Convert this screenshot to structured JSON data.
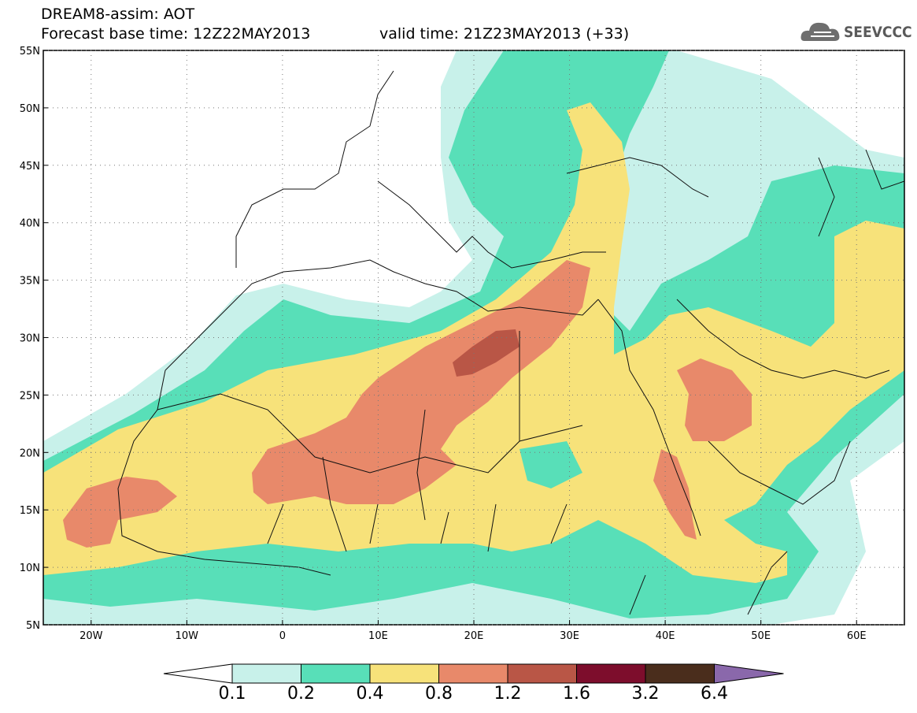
{
  "header": {
    "line1": "DREAM8-assim: AOT",
    "line2_left": "Forecast base time: 12Z22MAY2013",
    "line2_right": "valid time: 21Z23MAY2013 (+33)"
  },
  "logo": {
    "text": "SEEVCCC",
    "icon": "cloud-icon"
  },
  "map": {
    "lat_labels": [
      "55N",
      "50N",
      "45N",
      "40N",
      "35N",
      "30N",
      "25N",
      "20N",
      "15N",
      "10N",
      "5N"
    ],
    "lon_labels": [
      "20W",
      "10W",
      "0",
      "10E",
      "20E",
      "30E",
      "40E",
      "50E",
      "60E"
    ],
    "lon_range": [
      -25,
      65
    ],
    "lat_range": [
      5,
      55
    ],
    "grid": "dotted"
  },
  "colorbar": {
    "levels": [
      "0.1",
      "0.2",
      "0.4",
      "0.8",
      "1.2",
      "1.6",
      "3.2",
      "6.4"
    ],
    "colors": [
      "#ffffff",
      "#c8f1ea",
      "#58dfb8",
      "#f7e27a",
      "#e8896a",
      "#b95646",
      "#7d0d2c",
      "#4a2d1c",
      "#8a68ab"
    ]
  }
}
